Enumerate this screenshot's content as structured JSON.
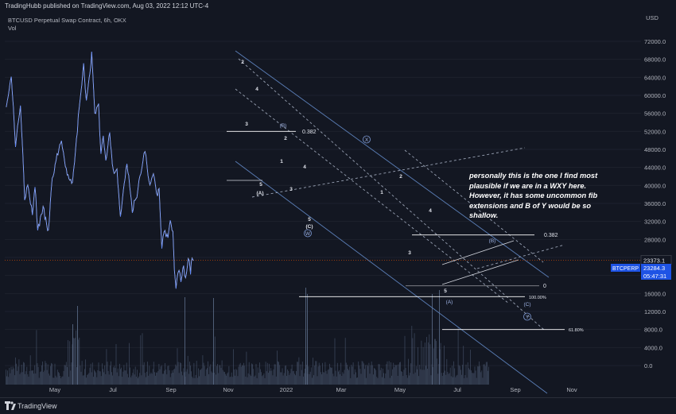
{
  "header": {
    "publisher_line": "TradingHubb published on TradingView.com, Aug 03, 2022 12:12 UTC-4",
    "chart_title": "BTCUSD Perpetual Swap Contract, 6h, OKX",
    "vol_label": "Vol"
  },
  "footer": {
    "brand": "TradingView"
  },
  "annotation_note": "personally this is the one I find most plausible if we are in a WXY here. However, it has some uncommon fib extensions and B of Y would be so shallow.",
  "colors": {
    "background": "#131722",
    "price_line": "#2962ff",
    "channel": "#5b7fb8",
    "fib_line": "#ffffff",
    "current_price_line": "#e65100",
    "volume": "#5b6b86",
    "accent_label": "#1e53e5"
  },
  "price_tags": {
    "current": "23373.1",
    "symbol": "BTCPERP",
    "last": "23284.3",
    "countdown": "05:47:31"
  },
  "chart_data": {
    "type": "line",
    "currency": "USD",
    "x_labels": [
      "May",
      "Jul",
      "Sep",
      "Nov",
      "2022",
      "Mar",
      "May",
      "Jul",
      "Sep",
      "Nov"
    ],
    "y_ticks": [
      "72000.0",
      "68000.0",
      "64000.0",
      "60000.0",
      "56000.0",
      "52000.0",
      "48000.0",
      "44000.0",
      "40000.0",
      "36000.0",
      "32000.0",
      "28000.0",
      "24000.0",
      "20000.0",
      "16000.0",
      "12000.0",
      "8000.0",
      "4000.0",
      "0.0"
    ],
    "ylim": [
      -1000,
      75000
    ],
    "series": [
      {
        "name": "BTCUSD",
        "points": [
          [
            "2021-04-01",
            58000
          ],
          [
            "2021-04-14",
            64500
          ],
          [
            "2021-04-25",
            49000
          ],
          [
            "2021-05-08",
            58500
          ],
          [
            "2021-05-19",
            37000
          ],
          [
            "2021-05-27",
            40000
          ],
          [
            "2021-06-08",
            33500
          ],
          [
            "2021-06-15",
            40000
          ],
          [
            "2021-06-22",
            30000
          ],
          [
            "2021-07-06",
            35000
          ],
          [
            "2021-07-20",
            29800
          ],
          [
            "2021-07-30",
            41500
          ],
          [
            "2021-08-14",
            47500
          ],
          [
            "2021-08-23",
            50000
          ],
          [
            "2021-09-07",
            42500
          ],
          [
            "2021-09-21",
            40000
          ],
          [
            "2021-10-06",
            55000
          ],
          [
            "2021-10-20",
            66500
          ],
          [
            "2021-10-27",
            58500
          ],
          [
            "2021-11-10",
            69000
          ],
          [
            "2021-11-18",
            56000
          ],
          [
            "2021-11-28",
            57500
          ],
          [
            "2021-12-04",
            47000
          ],
          [
            "2021-12-10",
            51500
          ],
          [
            "2021-12-17",
            45500
          ],
          [
            "2021-12-27",
            52000
          ],
          [
            "2022-01-05",
            43000
          ],
          [
            "2022-01-15",
            43500
          ],
          [
            "2022-01-24",
            33000
          ],
          [
            "2022-02-10",
            45000
          ],
          [
            "2022-02-24",
            34500
          ],
          [
            "2022-03-08",
            38000
          ],
          [
            "2022-03-29",
            48000
          ],
          [
            "2022-04-11",
            39500
          ],
          [
            "2022-04-20",
            42500
          ],
          [
            "2022-05-01",
            37500
          ],
          [
            "2022-05-05",
            39800
          ],
          [
            "2022-05-12",
            26500
          ],
          [
            "2022-05-18",
            30000
          ],
          [
            "2022-05-28",
            28500
          ],
          [
            "2022-06-03",
            31500
          ],
          [
            "2022-06-10",
            29500
          ],
          [
            "2022-06-14",
            21000
          ],
          [
            "2022-06-18",
            17600
          ],
          [
            "2022-06-26",
            21500
          ],
          [
            "2022-07-01",
            18900
          ],
          [
            "2022-07-08",
            22000
          ],
          [
            "2022-07-13",
            19000
          ],
          [
            "2022-07-20",
            24200
          ],
          [
            "2022-07-26",
            21000
          ],
          [
            "2022-07-30",
            24500
          ],
          [
            "2022-08-03",
            23300
          ]
        ]
      }
    ],
    "fib_levels": [
      {
        "label": "0.382",
        "price": 52000
      },
      {
        "label": "0.382",
        "price": 29000
      },
      {
        "label": "0",
        "price": 17700
      },
      {
        "label": "100.00%",
        "price": 15300
      },
      {
        "label": "61.80%",
        "price": 8000
      }
    ],
    "wave_labels": [
      "2",
      "4",
      "3",
      "5",
      "(A)",
      "(B)",
      "2",
      "4",
      "1",
      "3",
      "5",
      "(C)",
      "W",
      "X",
      "2",
      "1",
      "4",
      "3",
      "5",
      "(A)",
      "(B)",
      "(C)",
      "Y"
    ]
  }
}
